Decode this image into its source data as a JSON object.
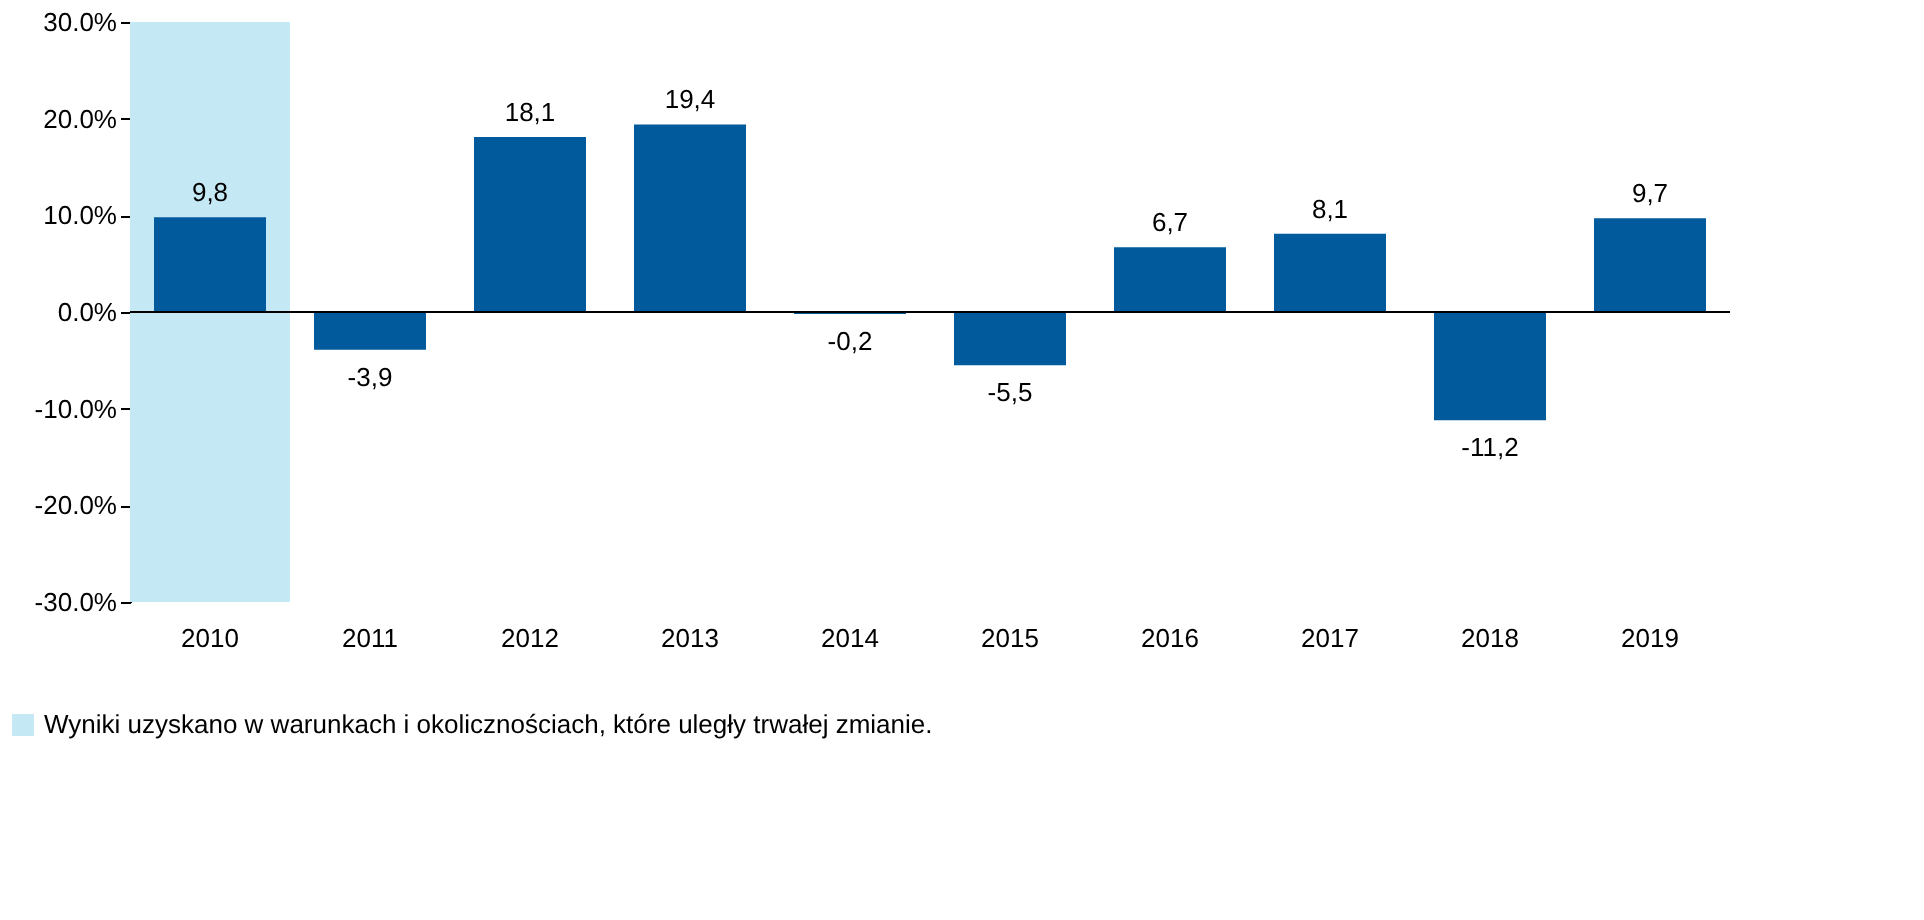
{
  "chart_data": {
    "type": "bar",
    "categories": [
      "2010",
      "2011",
      "2012",
      "2013",
      "2014",
      "2015",
      "2016",
      "2017",
      "2018",
      "2019"
    ],
    "series": [
      {
        "color": "#005a9c",
        "values": [
          9.8,
          -3.9,
          18.1,
          19.4,
          -0.2,
          -5.5,
          6.7,
          8.1,
          -11.2,
          9.7
        ],
        "value_labels": [
          "9,8",
          "-3,9",
          "18,1",
          "19,4",
          "-0,2",
          "-5,5",
          "6,7",
          "8,1",
          "-11,2",
          "9,7"
        ]
      }
    ],
    "ylim": [
      -30,
      30
    ],
    "yticks": [
      {
        "value": -30,
        "label": "-30.0%"
      },
      {
        "value": -20,
        "label": "-20.0%"
      },
      {
        "value": -10,
        "label": "-10.0%"
      },
      {
        "value": 0,
        "label": "0.0%"
      },
      {
        "value": 10,
        "label": "10.0%"
      },
      {
        "value": 20,
        "label": "20.0%"
      },
      {
        "value": 30,
        "label": "30.0%"
      }
    ],
    "bands": [
      {
        "axis": "x",
        "from": "2010",
        "to": "2010",
        "label": "Wyniki uzyskano w warunkach i okolicznościach, które uległy trwałej zmianie.",
        "color": "#c5e8f5"
      }
    ],
    "legend": "bottom left"
  }
}
